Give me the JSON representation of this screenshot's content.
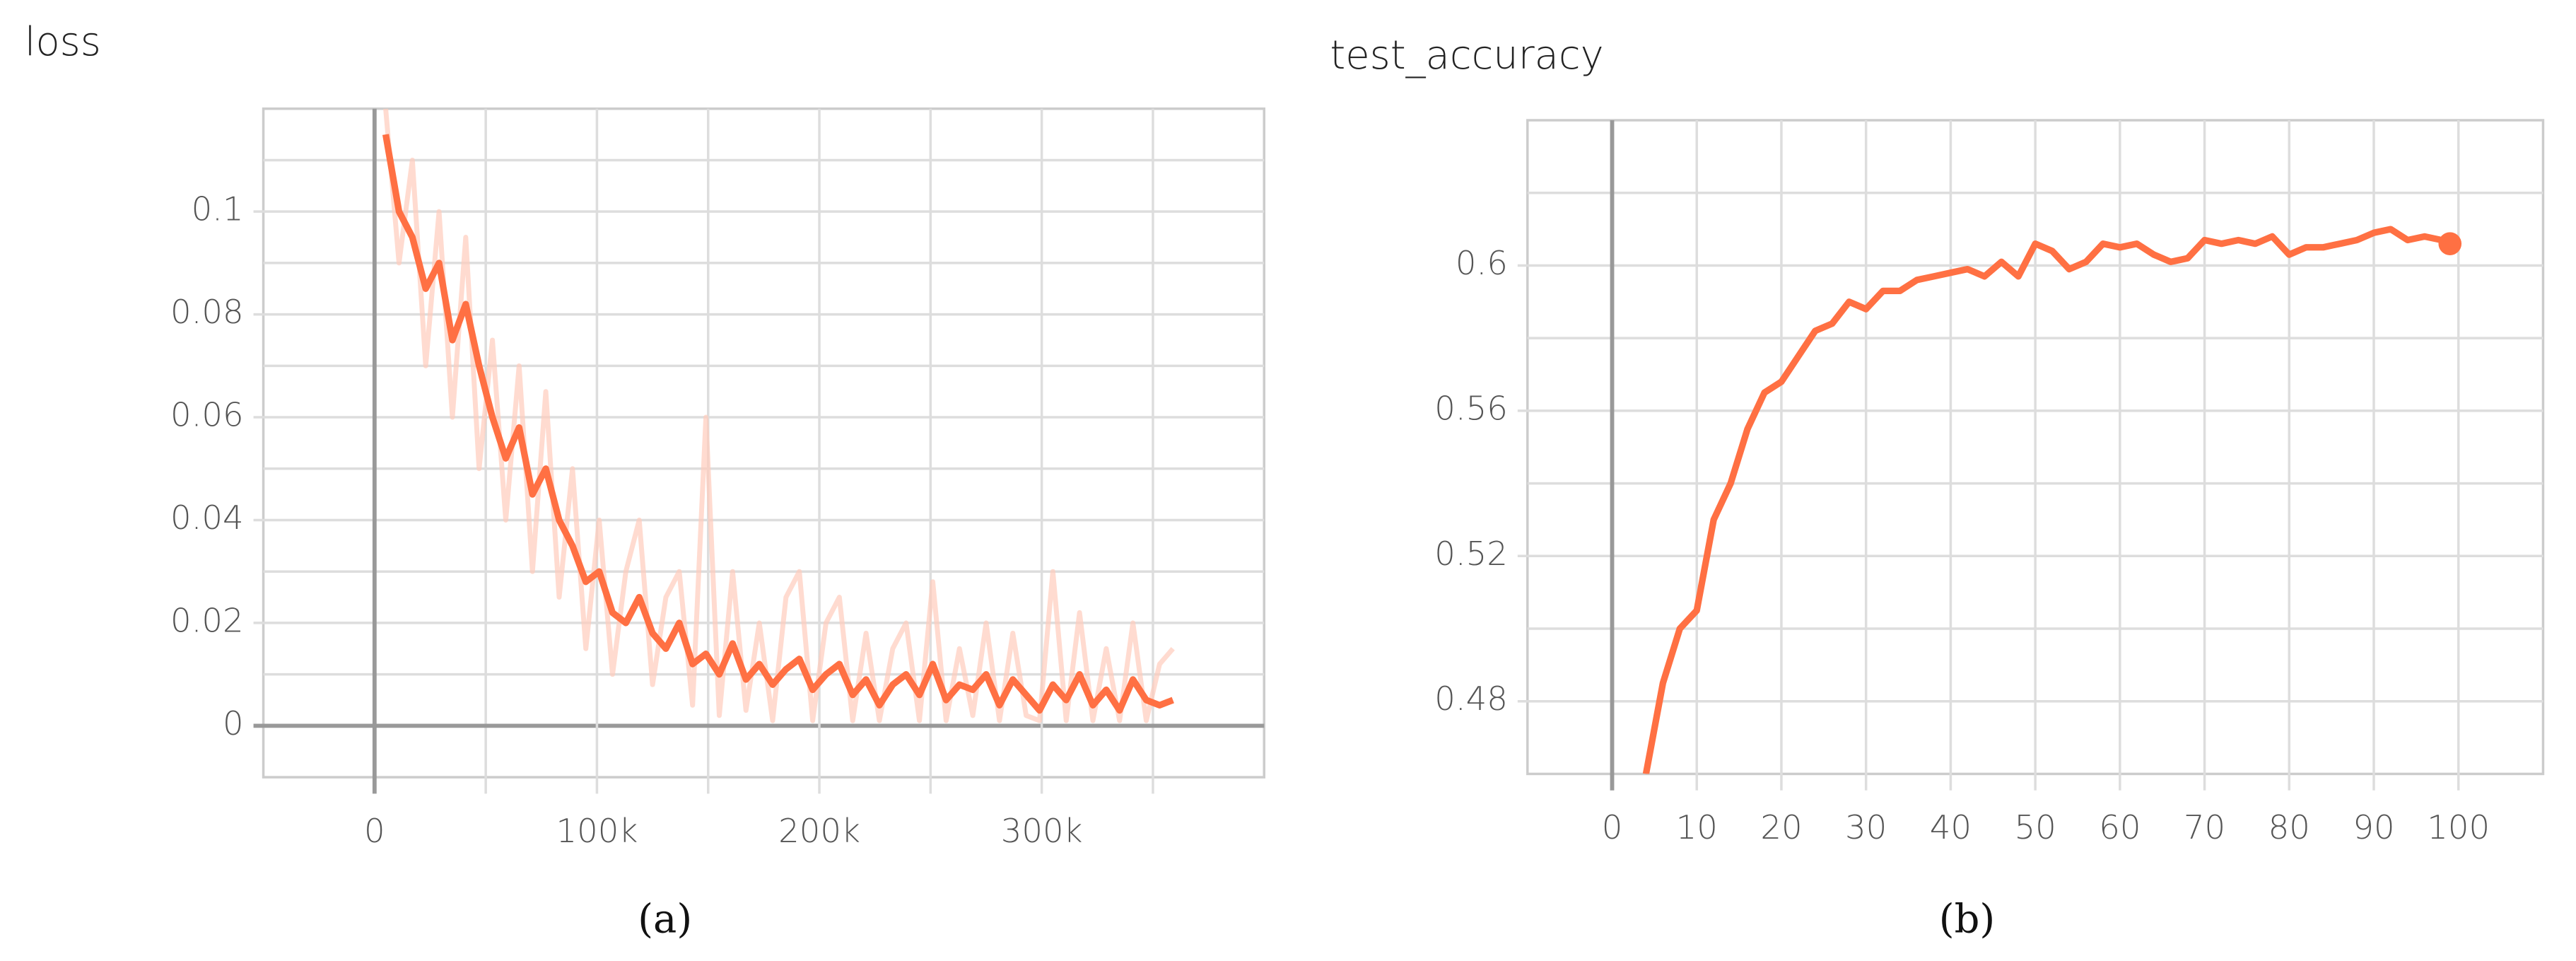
{
  "chart_data": [
    {
      "type": "line",
      "title": "loss",
      "caption": "(a)",
      "color": "#ff7043",
      "raw_color": "#ffccbc",
      "xlim": [
        -50000,
        400000
      ],
      "ylim": [
        -0.01,
        0.12
      ],
      "xticks": [
        0,
        {
          "value": 100000,
          "label": "100k"
        },
        {
          "value": 200000,
          "label": "200k"
        },
        {
          "value": 300000,
          "label": "300k"
        }
      ],
      "minor_xticks": [
        50000,
        150000,
        250000,
        350000
      ],
      "yticks": [
        0,
        0.02,
        0.04,
        0.06,
        0.08,
        0.1
      ],
      "minor_yticks": [
        0.01,
        0.03,
        0.05,
        0.07,
        0.09,
        0.11
      ],
      "grid": true,
      "x": [
        5000,
        11000,
        17000,
        23000,
        29000,
        35000,
        41000,
        47000,
        53000,
        59000,
        65000,
        71000,
        77000,
        83000,
        89000,
        95000,
        101000,
        107000,
        113000,
        119000,
        125000,
        131000,
        137000,
        143000,
        149000,
        155000,
        161000,
        167000,
        173000,
        179000,
        185000,
        191000,
        197000,
        203000,
        209000,
        215000,
        221000,
        227000,
        233000,
        239000,
        245000,
        251000,
        257000,
        263000,
        269000,
        275000,
        281000,
        287000,
        293000,
        299000,
        305000,
        311000,
        317000,
        323000,
        329000,
        335000,
        341000,
        347000,
        353000,
        359000
      ],
      "series": [
        {
          "raw": true,
          "values": [
            0.12,
            0.09,
            0.11,
            0.07,
            0.1,
            0.06,
            0.095,
            0.05,
            0.075,
            0.04,
            0.07,
            0.03,
            0.065,
            0.025,
            0.05,
            0.015,
            0.04,
            0.01,
            0.03,
            0.04,
            0.008,
            0.025,
            0.03,
            0.004,
            0.06,
            0.002,
            0.03,
            0.003,
            0.02,
            0.001,
            0.025,
            0.03,
            0.001,
            0.02,
            0.025,
            0.001,
            0.018,
            0.001,
            0.015,
            0.02,
            0.001,
            0.028,
            0.001,
            0.015,
            0.002,
            0.02,
            0.001,
            0.018,
            0.002,
            0.001,
            0.03,
            0.001,
            0.022,
            0.001,
            0.015,
            0.001,
            0.02,
            0.001,
            0.012,
            0.015
          ]
        },
        {
          "raw": false,
          "values": [
            0.115,
            0.1,
            0.095,
            0.085,
            0.09,
            0.075,
            0.082,
            0.07,
            0.06,
            0.052,
            0.058,
            0.045,
            0.05,
            0.04,
            0.035,
            0.028,
            0.03,
            0.022,
            0.02,
            0.025,
            0.018,
            0.015,
            0.02,
            0.012,
            0.014,
            0.01,
            0.016,
            0.009,
            0.012,
            0.008,
            0.011,
            0.013,
            0.007,
            0.01,
            0.012,
            0.006,
            0.009,
            0.004,
            0.008,
            0.01,
            0.006,
            0.012,
            0.005,
            0.008,
            0.007,
            0.01,
            0.004,
            0.009,
            0.006,
            0.003,
            0.008,
            0.005,
            0.01,
            0.004,
            0.007,
            0.003,
            0.009,
            0.005,
            0.004,
            0.005
          ]
        }
      ]
    },
    {
      "type": "line",
      "title": "test_accuracy",
      "caption": "(b)",
      "color": "#ff7043",
      "raw_color": "#ffccbc",
      "xlim": [
        -10,
        110
      ],
      "ylim": [
        0.46,
        0.64
      ],
      "xticks": [
        0,
        10,
        20,
        30,
        40,
        50,
        60,
        70,
        80,
        90,
        100
      ],
      "minor_xticks": [],
      "yticks": [
        0.48,
        0.52,
        0.56,
        0.6
      ],
      "minor_yticks": [
        0.5,
        0.54,
        0.58,
        0.62
      ],
      "grid": true,
      "end_marker": true,
      "x": [
        4,
        6,
        8,
        10,
        12,
        14,
        16,
        18,
        20,
        22,
        24,
        26,
        28,
        30,
        32,
        34,
        36,
        38,
        40,
        42,
        44,
        46,
        48,
        50,
        52,
        54,
        56,
        58,
        60,
        62,
        64,
        66,
        68,
        70,
        72,
        74,
        76,
        78,
        80,
        82,
        84,
        86,
        88,
        90,
        92,
        94,
        96,
        98,
        99
      ],
      "series": [
        {
          "raw": false,
          "values": [
            0.46,
            0.485,
            0.5,
            0.505,
            0.53,
            0.54,
            0.555,
            0.565,
            0.568,
            0.575,
            0.582,
            0.584,
            0.59,
            0.588,
            0.593,
            0.593,
            0.596,
            0.597,
            0.598,
            0.599,
            0.597,
            0.601,
            0.597,
            0.606,
            0.604,
            0.599,
            0.601,
            0.606,
            0.605,
            0.606,
            0.603,
            0.601,
            0.602,
            0.607,
            0.606,
            0.607,
            0.606,
            0.608,
            0.603,
            0.605,
            0.605,
            0.606,
            0.607,
            0.609,
            0.61,
            0.607,
            0.608,
            0.607,
            0.606
          ]
        }
      ]
    }
  ]
}
